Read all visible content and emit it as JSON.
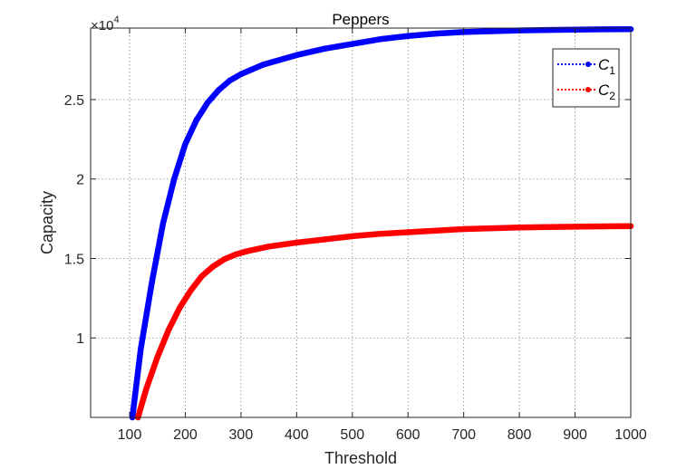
{
  "chart_data": {
    "type": "line",
    "title": "Peppers",
    "xlabel": "Threshold",
    "ylabel": "Capacity",
    "exponent_label": "×10",
    "exponent_power": "4",
    "xlim": [
      30,
      1000
    ],
    "ylim": [
      5000,
      29500
    ],
    "xticks": [
      100,
      200,
      300,
      400,
      500,
      600,
      700,
      800,
      900,
      1000
    ],
    "xtick_labels": [
      "100",
      "200",
      "300",
      "400",
      "500",
      "600",
      "700",
      "800",
      "900",
      "1000"
    ],
    "yticks": [
      10000,
      15000,
      20000,
      25000
    ],
    "ytick_labels": [
      "1",
      "1.5",
      "2",
      "2.5"
    ],
    "grid": true,
    "legend_position": "top-right",
    "series": [
      {
        "name": "C",
        "subscript": "1",
        "color": "#0000ff",
        "x": [
          105,
          120,
          140,
          160,
          180,
          200,
          220,
          240,
          260,
          280,
          300,
          320,
          340,
          360,
          380,
          400,
          450,
          500,
          550,
          600,
          650,
          700,
          750,
          800,
          850,
          900,
          950,
          1000
        ],
        "y": [
          5000,
          9300,
          13500,
          17200,
          20000,
          22200,
          23700,
          24800,
          25600,
          26200,
          26600,
          26900,
          27200,
          27400,
          27600,
          27800,
          28200,
          28500,
          28800,
          29000,
          29150,
          29250,
          29300,
          29350,
          29380,
          29400,
          29420,
          29430
        ]
      },
      {
        "name": "C",
        "subscript": "2",
        "color": "#ff0000",
        "x": [
          115,
          130,
          150,
          170,
          190,
          210,
          230,
          250,
          270,
          290,
          310,
          330,
          350,
          400,
          450,
          500,
          550,
          600,
          650,
          700,
          750,
          800,
          850,
          900,
          950,
          1000
        ],
        "y": [
          5000,
          6800,
          8800,
          10500,
          11900,
          13000,
          13900,
          14500,
          14950,
          15250,
          15450,
          15600,
          15750,
          16000,
          16200,
          16400,
          16550,
          16650,
          16750,
          16850,
          16900,
          16950,
          16980,
          17000,
          17020,
          17040
        ]
      }
    ]
  }
}
